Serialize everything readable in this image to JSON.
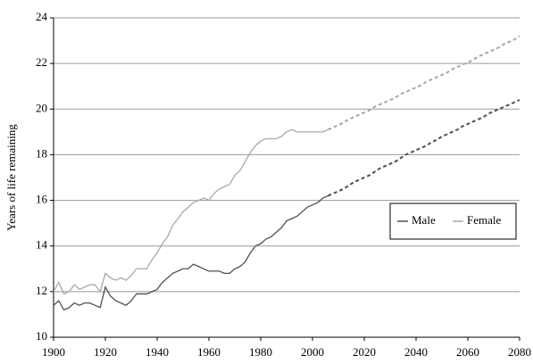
{
  "chart_data": {
    "type": "line",
    "y_label": "Years of life remaining",
    "x": [
      1900,
      1902,
      1904,
      1906,
      1908,
      1910,
      1912,
      1914,
      1916,
      1918,
      1920,
      1922,
      1924,
      1926,
      1928,
      1930,
      1932,
      1934,
      1936,
      1938,
      1940,
      1942,
      1944,
      1946,
      1948,
      1950,
      1952,
      1954,
      1956,
      1958,
      1960,
      1962,
      1964,
      1966,
      1968,
      1970,
      1972,
      1974,
      1976,
      1978,
      1980,
      1982,
      1984,
      1986,
      1988,
      1990,
      1992,
      1994,
      1996,
      1998,
      2000,
      2002,
      2004,
      2006,
      2008,
      2010,
      2012,
      2014,
      2016,
      2018,
      2020,
      2022,
      2024,
      2026,
      2028,
      2030,
      2032,
      2034,
      2036,
      2038,
      2040,
      2042,
      2044,
      2046,
      2048,
      2050,
      2052,
      2054,
      2056,
      2058,
      2060,
      2062,
      2064,
      2066,
      2068,
      2070,
      2072,
      2074,
      2076,
      2078,
      2080
    ],
    "series": [
      {
        "name": "Male",
        "color": "#505050",
        "values": [
          11.4,
          11.6,
          11.2,
          11.3,
          11.5,
          11.4,
          11.5,
          11.5,
          11.4,
          11.3,
          12.2,
          11.8,
          11.6,
          11.5,
          11.4,
          11.6,
          11.9,
          11.9,
          11.9,
          12.0,
          12.1,
          12.4,
          12.6,
          12.8,
          12.9,
          13.0,
          13.0,
          13.2,
          13.1,
          13.0,
          12.9,
          12.9,
          12.9,
          12.8,
          12.8,
          13.0,
          13.1,
          13.3,
          13.7,
          14.0,
          14.1,
          14.3,
          14.4,
          14.6,
          14.8,
          15.1,
          15.2,
          15.3,
          15.5,
          15.7,
          15.8,
          15.9,
          16.1,
          16.2,
          null,
          null,
          null,
          null,
          null,
          null,
          null,
          null,
          null,
          null,
          null,
          null,
          null,
          null,
          null,
          null,
          null,
          null,
          null,
          null,
          null,
          null,
          null,
          null,
          null,
          null,
          null,
          null,
          null,
          null,
          null,
          null,
          null,
          null,
          null,
          null,
          null
        ],
        "projected_values": [
          null,
          null,
          null,
          null,
          null,
          null,
          null,
          null,
          null,
          null,
          null,
          null,
          null,
          null,
          null,
          null,
          null,
          null,
          null,
          null,
          null,
          null,
          null,
          null,
          null,
          null,
          null,
          null,
          null,
          null,
          null,
          null,
          null,
          null,
          null,
          null,
          null,
          null,
          null,
          null,
          null,
          null,
          null,
          null,
          null,
          null,
          null,
          null,
          null,
          null,
          null,
          null,
          null,
          16.2,
          16.3,
          16.4,
          16.5,
          16.65,
          16.8,
          16.9,
          17.0,
          17.1,
          17.25,
          17.4,
          17.5,
          17.6,
          17.7,
          17.85,
          18.0,
          18.1,
          18.2,
          18.3,
          18.4,
          18.55,
          18.65,
          18.8,
          18.9,
          19.0,
          19.1,
          19.25,
          19.35,
          19.45,
          19.55,
          19.65,
          19.8,
          19.9,
          20.0,
          20.1,
          20.2,
          20.3,
          20.4
        ]
      },
      {
        "name": "Female",
        "color": "#a8a8a8",
        "values": [
          12.0,
          12.4,
          11.9,
          12.0,
          12.3,
          12.1,
          12.2,
          12.3,
          12.3,
          12.0,
          12.8,
          12.6,
          12.5,
          12.6,
          12.5,
          12.7,
          13.0,
          13.0,
          13.0,
          13.4,
          13.7,
          14.1,
          14.4,
          14.9,
          15.2,
          15.5,
          15.7,
          15.9,
          16.0,
          16.1,
          16.0,
          16.3,
          16.5,
          16.6,
          16.7,
          17.1,
          17.3,
          17.7,
          18.1,
          18.4,
          18.6,
          18.7,
          18.7,
          18.7,
          18.8,
          19.0,
          19.1,
          19.0,
          19.0,
          19.0,
          19.0,
          19.0,
          19.0,
          19.1,
          null,
          null,
          null,
          null,
          null,
          null,
          null,
          null,
          null,
          null,
          null,
          null,
          null,
          null,
          null,
          null,
          null,
          null,
          null,
          null,
          null,
          null,
          null,
          null,
          null,
          null,
          null,
          null,
          null,
          null,
          null,
          null,
          null,
          null,
          null,
          null,
          null
        ],
        "projected_values": [
          null,
          null,
          null,
          null,
          null,
          null,
          null,
          null,
          null,
          null,
          null,
          null,
          null,
          null,
          null,
          null,
          null,
          null,
          null,
          null,
          null,
          null,
          null,
          null,
          null,
          null,
          null,
          null,
          null,
          null,
          null,
          null,
          null,
          null,
          null,
          null,
          null,
          null,
          null,
          null,
          null,
          null,
          null,
          null,
          null,
          null,
          null,
          null,
          null,
          null,
          null,
          null,
          null,
          19.1,
          19.2,
          19.3,
          19.4,
          19.55,
          19.65,
          19.75,
          19.85,
          19.95,
          20.1,
          20.2,
          20.3,
          20.4,
          20.5,
          20.65,
          20.75,
          20.85,
          20.95,
          21.05,
          21.2,
          21.3,
          21.4,
          21.5,
          21.6,
          21.75,
          21.85,
          21.95,
          22.05,
          22.15,
          22.3,
          22.4,
          22.5,
          22.6,
          22.7,
          22.85,
          22.95,
          23.05,
          23.2
        ]
      }
    ],
    "xlim": [
      1900,
      2080
    ],
    "xticks": [
      1900,
      1920,
      1940,
      1960,
      1980,
      2000,
      2020,
      2040,
      2060,
      2080
    ],
    "ylim": [
      10,
      24
    ],
    "yticks": [
      10,
      12,
      14,
      16,
      18,
      20,
      22,
      24
    ],
    "grid": true,
    "legend": "right"
  }
}
